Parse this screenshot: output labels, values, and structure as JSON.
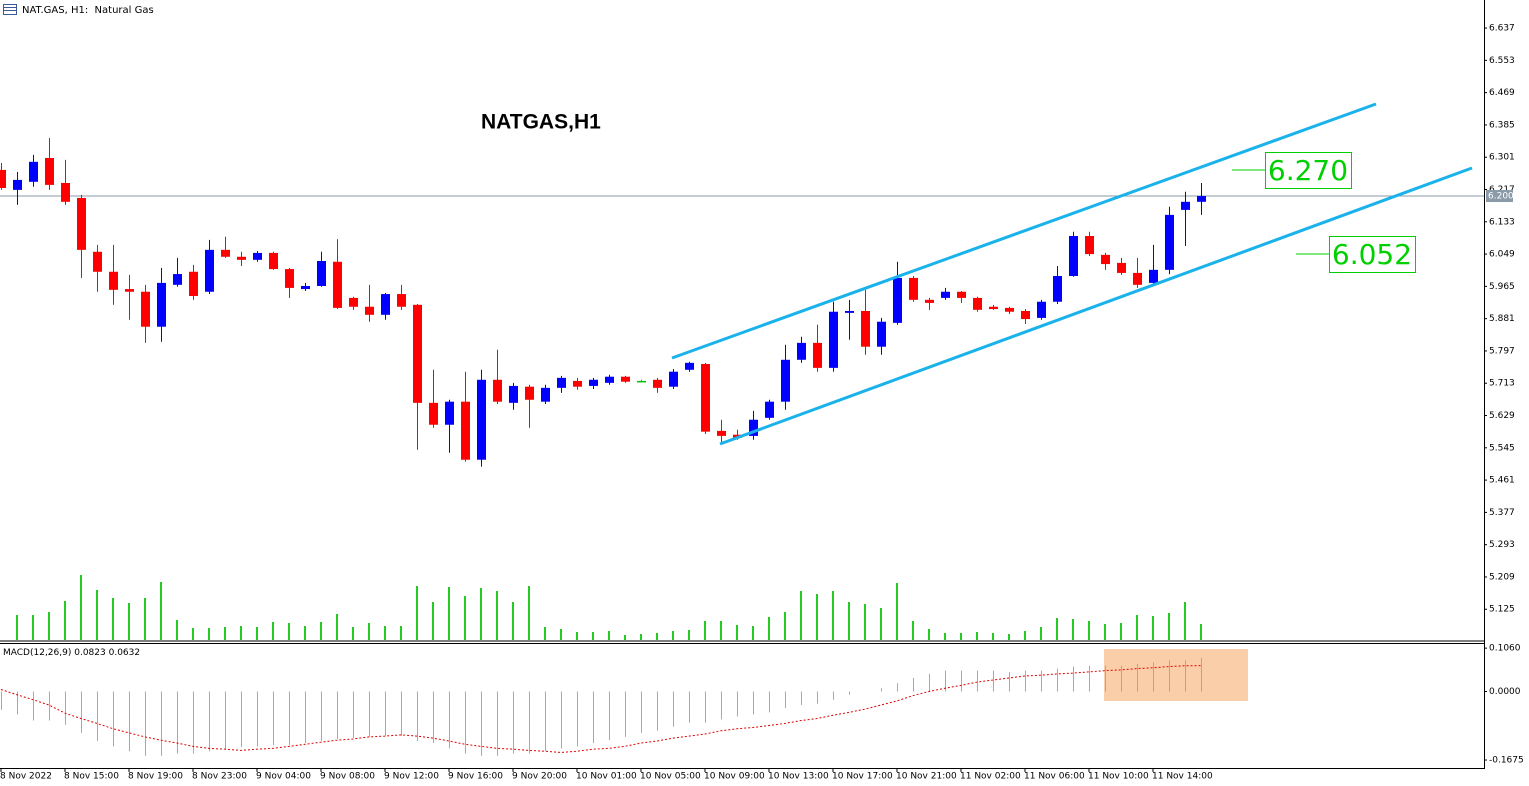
{
  "chart_data": [
    {
      "type": "candlestick",
      "header": "NAT.GAS, H1:  Natural Gas",
      "title": "NATGAS,H1",
      "categories": [
        "8 Nov 2022",
        null,
        null,
        null,
        "8 Nov 15:00",
        null,
        null,
        null,
        "8 Nov 19:00",
        null,
        null,
        null,
        "8 Nov 23:00",
        null,
        null,
        null,
        "9 Nov 04:00",
        null,
        null,
        null,
        "9 Nov 08:00",
        null,
        null,
        null,
        "9 Nov 12:00",
        null,
        null,
        null,
        "9 Nov 16:00",
        null,
        null,
        null,
        "9 Nov 20:00",
        null,
        null,
        null,
        "10 Nov 01:00",
        null,
        null,
        null,
        "10 Nov 05:00",
        null,
        null,
        null,
        "10 Nov 09:00",
        null,
        null,
        null,
        "10 Nov 13:00",
        null,
        null,
        null,
        "10 Nov 17:00",
        null,
        null,
        null,
        "10 Nov 21:00",
        null,
        null,
        null,
        "11 Nov 02:00",
        null,
        null,
        null,
        "11 Nov 06:00",
        null,
        null,
        null,
        "11 Nov 10:00",
        null,
        null,
        null,
        "11 Nov 14:00",
        null,
        null,
        null
      ],
      "open": [
        6.268,
        6.216,
        6.237,
        6.299,
        6.234,
        6.195,
        6.055,
        6.003,
        5.958,
        5.951,
        5.86,
        5.969,
        6.003,
        5.951,
        6.06,
        6.042,
        6.034,
        6.052,
        6.01,
        5.958,
        5.966,
        6.029,
        5.935,
        5.912,
        5.891,
        5.945,
        5.917,
        5.662,
        5.605,
        5.665,
        5.514,
        5.722,
        5.662,
        5.704,
        5.665,
        5.701,
        5.719,
        5.706,
        5.714,
        5.73,
        5.719,
        5.722,
        5.704,
        5.748,
        5.763,
        5.589,
        5.579,
        5.576,
        5.623,
        5.665,
        5.774,
        5.818,
        5.753,
        5.896,
        5.901,
        5.808,
        5.87,
        5.987,
        5.93,
        5.935,
        5.951,
        5.935,
        5.912,
        5.909,
        5.901,
        5.883,
        5.925,
        5.992,
        6.096,
        6.047,
        6.026,
        6.0,
        5.974,
        6.008,
        6.164,
        6.185
      ],
      "high": [
        6.286,
        6.263,
        6.307,
        6.351,
        6.294,
        6.203,
        6.073,
        6.073,
        5.995,
        5.969,
        6.013,
        6.039,
        6.021,
        6.086,
        6.094,
        6.055,
        6.057,
        6.055,
        6.013,
        5.974,
        6.055,
        6.088,
        5.938,
        5.969,
        5.948,
        5.969,
        5.919,
        5.748,
        5.67,
        5.743,
        5.748,
        5.8,
        5.714,
        5.709,
        5.709,
        5.732,
        5.727,
        5.727,
        5.735,
        5.732,
        5.722,
        5.727,
        5.75,
        5.769,
        5.766,
        5.618,
        5.592,
        5.641,
        5.67,
        5.813,
        5.834,
        5.865,
        5.925,
        5.93,
        5.956,
        5.883,
        6.029,
        5.992,
        5.935,
        5.961,
        5.953,
        5.938,
        5.917,
        5.912,
        5.906,
        5.93,
        6.018,
        6.107,
        6.107,
        6.052,
        6.039,
        6.039,
        6.073,
        6.172,
        6.211,
        6.234
      ],
      "low": [
        6.216,
        6.177,
        6.224,
        6.216,
        6.177,
        5.987,
        5.951,
        5.917,
        5.878,
        5.818,
        5.821,
        5.964,
        5.93,
        5.945,
        6.039,
        6.018,
        6.029,
        6.008,
        5.935,
        5.953,
        5.964,
        5.906,
        5.904,
        5.873,
        5.878,
        5.904,
        5.54,
        5.597,
        5.532,
        5.509,
        5.496,
        5.659,
        5.644,
        5.597,
        5.659,
        5.688,
        5.696,
        5.698,
        5.709,
        5.714,
        5.717,
        5.688,
        5.698,
        5.743,
        5.581,
        5.553,
        5.566,
        5.566,
        5.618,
        5.644,
        5.766,
        5.743,
        5.743,
        5.826,
        5.787,
        5.787,
        5.865,
        5.925,
        5.904,
        5.93,
        5.922,
        5.899,
        5.904,
        5.893,
        5.867,
        5.878,
        5.919,
        5.99,
        6.044,
        6.008,
        5.995,
        5.961,
        5.969,
        5.997,
        6.07,
        6.151
      ],
      "close": [
        6.221,
        6.242,
        6.289,
        6.229,
        6.185,
        6.06,
        6.003,
        5.956,
        5.951,
        5.86,
        5.974,
        5.997,
        5.94,
        6.06,
        6.042,
        6.034,
        6.052,
        6.01,
        5.961,
        5.966,
        6.031,
        5.909,
        5.912,
        5.891,
        5.945,
        5.912,
        5.662,
        5.605,
        5.665,
        5.514,
        5.722,
        5.665,
        5.706,
        5.67,
        5.701,
        5.727,
        5.704,
        5.722,
        5.73,
        5.717,
        5.719,
        5.701,
        5.743,
        5.766,
        5.587,
        5.576,
        5.571,
        5.618,
        5.665,
        5.774,
        5.818,
        5.753,
        5.899,
        5.901,
        5.808,
        5.873,
        5.987,
        5.93,
        5.922,
        5.951,
        5.935,
        5.904,
        5.906,
        5.899,
        5.88,
        5.925,
        5.992,
        6.096,
        6.049,
        6.023,
        6.0,
        5.969,
        6.008,
        6.151,
        6.185,
        6.2
      ],
      "up_color": "#0000ff",
      "down_color": "#ff0000",
      "doji_color": "#00c000",
      "volume": [
        null,
        25,
        25,
        28,
        39,
        65,
        50,
        42,
        37,
        42,
        58,
        20,
        12,
        12,
        13,
        14,
        13,
        18,
        17,
        14,
        18,
        26,
        13,
        17,
        14,
        14,
        54,
        38,
        53,
        44,
        52,
        49,
        38,
        54,
        13,
        11,
        8,
        8,
        9,
        5,
        6,
        7,
        9,
        10,
        19,
        19,
        15,
        14,
        23,
        28,
        49,
        46,
        49,
        38,
        36,
        32,
        57,
        19,
        11,
        7,
        7,
        8,
        7,
        6,
        9,
        13,
        22,
        21,
        19,
        16,
        17,
        25,
        24,
        27,
        38,
        16
      ],
      "volume_color": "#22cc22",
      "ylim": [
        5.045,
        6.71
      ],
      "yticks": [
        6.637,
        6.553,
        6.469,
        6.385,
        6.301,
        6.217,
        6.133,
        6.049,
        5.965,
        5.881,
        5.797,
        5.713,
        5.629,
        5.545,
        5.461,
        5.377,
        5.293,
        5.209,
        5.125
      ],
      "current_price": {
        "value": 6.2,
        "label": "6.200"
      },
      "annotations": [
        "6.270",
        "6.052"
      ]
    },
    {
      "type": "macd",
      "label": "MACD(12,26,9)",
      "histogram": {
        "color": "#a8a8a8",
        "values": [
          -0.045,
          -0.056,
          -0.071,
          -0.071,
          -0.081,
          -0.101,
          -0.121,
          -0.134,
          -0.146,
          -0.157,
          -0.157,
          -0.152,
          -0.152,
          -0.146,
          -0.141,
          -0.136,
          -0.134,
          -0.131,
          -0.131,
          -0.126,
          -0.121,
          -0.116,
          -0.114,
          -0.111,
          -0.109,
          -0.109,
          -0.121,
          -0.126,
          -0.139,
          -0.152,
          -0.157,
          -0.157,
          -0.152,
          -0.152,
          -0.146,
          -0.139,
          -0.134,
          -0.126,
          -0.119,
          -0.111,
          -0.101,
          -0.096,
          -0.086,
          -0.076,
          -0.076,
          -0.068,
          -0.061,
          -0.056,
          -0.051,
          -0.04,
          -0.033,
          -0.03,
          -0.02,
          -0.008,
          0,
          0.008,
          0.02,
          0.033,
          0.043,
          0.051,
          0.051,
          0.051,
          0.051,
          0.048,
          0.051,
          0.051,
          0.056,
          0.061,
          0.063,
          0.063,
          0.063,
          0.068,
          0.071,
          0.076,
          0.076,
          0.0823
        ]
      },
      "signal": {
        "color": "#e00000",
        "values": [
          0.005,
          -0.008,
          -0.02,
          -0.033,
          -0.053,
          -0.066,
          -0.078,
          -0.091,
          -0.101,
          -0.111,
          -0.119,
          -0.126,
          -0.134,
          -0.139,
          -0.141,
          -0.144,
          -0.141,
          -0.139,
          -0.134,
          -0.129,
          -0.124,
          -0.119,
          -0.116,
          -0.111,
          -0.109,
          -0.106,
          -0.109,
          -0.114,
          -0.121,
          -0.129,
          -0.134,
          -0.139,
          -0.141,
          -0.144,
          -0.146,
          -0.149,
          -0.146,
          -0.141,
          -0.139,
          -0.134,
          -0.126,
          -0.121,
          -0.114,
          -0.109,
          -0.104,
          -0.096,
          -0.091,
          -0.088,
          -0.083,
          -0.078,
          -0.071,
          -0.066,
          -0.058,
          -0.051,
          -0.043,
          -0.033,
          -0.023,
          -0.01,
          0,
          0.008,
          0.015,
          0.023,
          0.028,
          0.033,
          0.038,
          0.04,
          0.043,
          0.045,
          0.048,
          0.051,
          0.053,
          0.056,
          0.058,
          0.061,
          0.063,
          0.0632
        ]
      },
      "ylim": [
        -0.187,
        0.1186
      ],
      "yticks": [
        {
          "value": 0.106,
          "label": "0.1060"
        },
        {
          "value": 0,
          "label": "0.0000"
        },
        {
          "value": -0.1675,
          "label": "-0.1675"
        }
      ]
    }
  ]
}
